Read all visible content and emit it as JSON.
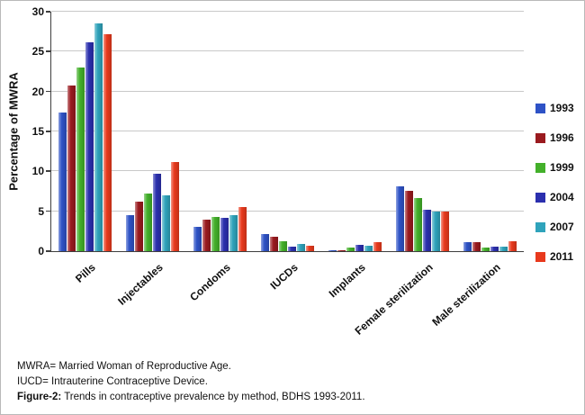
{
  "figure": {
    "notes": [
      "MWRA= Married Woman of Reproductive Age.",
      "IUCD= Intrauterine Contraceptive Device."
    ],
    "caption_label": "Figure-2:",
    "caption_text": " Trends in contraceptive prevalence by method, BDHS 1993-2011."
  },
  "chart_data": {
    "type": "bar",
    "title": "",
    "xlabel": "",
    "ylabel": "Percentage of MWRA",
    "ylim": [
      0,
      30
    ],
    "yticks": [
      0,
      5,
      10,
      15,
      20,
      25,
      30
    ],
    "grid": true,
    "legend_position": "right",
    "categories": [
      "Pills",
      "Injectables",
      "Condoms",
      "IUCDs",
      "Implants",
      "Female sterilization",
      "Male sterilization"
    ],
    "series": [
      {
        "name": "1993",
        "color": "#2e52c6",
        "values": [
          17.4,
          4.5,
          3.0,
          2.2,
          0.1,
          8.1,
          1.1
        ]
      },
      {
        "name": "1996",
        "color": "#9a1a1f",
        "values": [
          20.8,
          6.2,
          3.9,
          1.8,
          0.1,
          7.6,
          1.1
        ]
      },
      {
        "name": "1999",
        "color": "#43b02a",
        "values": [
          23.0,
          7.2,
          4.3,
          1.2,
          0.5,
          6.7,
          0.5
        ]
      },
      {
        "name": "2004",
        "color": "#2b2fae",
        "values": [
          26.2,
          9.7,
          4.2,
          0.6,
          0.8,
          5.2,
          0.6
        ]
      },
      {
        "name": "2007",
        "color": "#2fa3bb",
        "values": [
          28.5,
          7.0,
          4.5,
          0.9,
          0.7,
          5.0,
          0.6
        ]
      },
      {
        "name": "2011",
        "color": "#e8391d",
        "values": [
          27.2,
          11.2,
          5.5,
          0.7,
          1.1,
          5.0,
          1.2
        ]
      }
    ]
  }
}
